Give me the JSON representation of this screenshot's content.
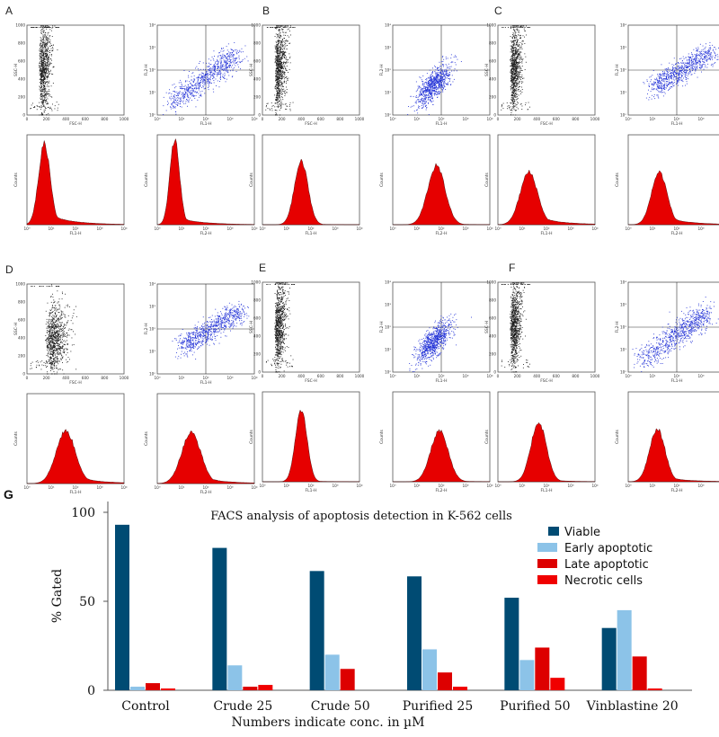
{
  "panels": [
    {
      "label": "A",
      "scatter1": "tall-left",
      "scatter2": "diagonal-spread",
      "hist1": {
        "peak": 0.18,
        "width": 0.06,
        "tail": 0.55,
        "height": 0.92
      },
      "hist2": {
        "peak": 0.18,
        "width": 0.05,
        "tail": 0.35,
        "height": 0.97
      }
    },
    {
      "label": "B",
      "scatter1": "tall-left",
      "scatter2": "compact-center",
      "hist1": {
        "peak": 0.4,
        "width": 0.07,
        "tail": 0.05,
        "height": 0.72
      },
      "hist2": {
        "peak": 0.45,
        "width": 0.09,
        "tail": 0.08,
        "height": 0.67
      }
    },
    {
      "label": "C",
      "scatter1": "tall-left",
      "scatter2": "diagonal-upper",
      "hist1": {
        "peak": 0.32,
        "width": 0.09,
        "tail": 0.75,
        "height": 0.6
      },
      "hist2": {
        "peak": 0.32,
        "width": 0.08,
        "tail": 0.65,
        "height": 0.6
      }
    },
    {
      "label": "D",
      "scatter1": "wide-blob",
      "scatter2": "diagonal-upper",
      "hist1": {
        "peak": 0.4,
        "width": 0.1,
        "tail": 0.7,
        "height": 0.6
      },
      "hist2": {
        "peak": 0.35,
        "width": 0.1,
        "tail": 0.65,
        "height": 0.58
      }
    },
    {
      "label": "E",
      "scatter1": "tall-left",
      "scatter2": "compact-center",
      "hist1": {
        "peak": 0.4,
        "width": 0.06,
        "tail": 0.05,
        "height": 0.82
      },
      "hist2": {
        "peak": 0.48,
        "width": 0.09,
        "tail": 0.1,
        "height": 0.58
      }
    },
    {
      "label": "F",
      "scatter1": "tall-left",
      "scatter2": "diagonal-spread",
      "hist1": {
        "peak": 0.42,
        "width": 0.08,
        "tail": 0.15,
        "height": 0.68
      },
      "hist2": {
        "peak": 0.3,
        "width": 0.08,
        "tail": 0.4,
        "height": 0.6
      }
    }
  ],
  "axis_labels": {
    "fsc": "FSC-H",
    "ssc": "SSC-H",
    "fl1": "FL1-H",
    "fl2": "FL2-H",
    "counts": "Counts",
    "lin_ticks": [
      "0",
      "200",
      "400",
      "600",
      "800",
      "1000"
    ],
    "log_ticks": [
      "10⁰",
      "10¹",
      "10²",
      "10³",
      "10⁴"
    ]
  },
  "colors": {
    "scatter_black": "#1a1a1a",
    "scatter_blue": "#1f2fd6",
    "hist_red": "#e60000",
    "viable": "#004b73",
    "early": "#8cc3e8",
    "late": "#dd0000",
    "necrotic": "#f00000"
  },
  "chart_panel_label": "G",
  "chart_data": {
    "type": "bar",
    "title": "FACS analysis of apoptosis detection in K-562 cells",
    "xlabel": "Numbers indicate conc. in µM",
    "ylabel": "% Gated",
    "ylim": [
      0,
      100
    ],
    "yticks": [
      0,
      50,
      100
    ],
    "categories": [
      "Control",
      "Crude 25",
      "Crude 50",
      "Purified 25",
      "Purified 50",
      "Vinblastine 20"
    ],
    "series": [
      {
        "name": "Viable",
        "values": [
          93,
          80,
          67,
          64,
          52,
          35
        ]
      },
      {
        "name": "Early apoptotic",
        "values": [
          2,
          14,
          20,
          23,
          17,
          45
        ]
      },
      {
        "name": "Late apoptotic",
        "values": [
          4,
          2,
          12,
          10,
          24,
          19
        ]
      },
      {
        "name": "Necrotic cells",
        "values": [
          1,
          3,
          0,
          2,
          7,
          1
        ]
      }
    ],
    "legend_position": "top-right",
    "grid": false
  }
}
